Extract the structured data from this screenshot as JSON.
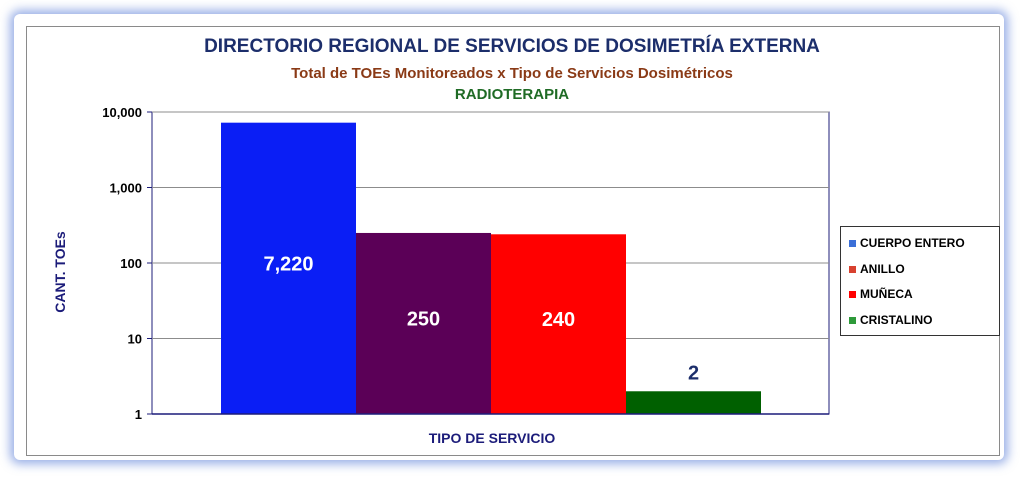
{
  "chart_data": {
    "type": "bar",
    "title": "DIRECTORIO REGIONAL DE SERVICIOS DE DOSIMETRÍA EXTERNA",
    "subtitle": "Total de TOEs Monitoreados x Tipo de Servicios Dosimétricos",
    "subtitle2": "RADIOTERAPIA",
    "xlabel": "TIPO DE SERVICIO",
    "ylabel": "CANT. TOEs",
    "y_scale": "log",
    "ylim": [
      1,
      10000
    ],
    "y_ticks": [
      1,
      10,
      100,
      1000,
      10000
    ],
    "y_tick_labels": [
      "1",
      "10",
      "100",
      "1,000",
      "10,000"
    ],
    "grid": true,
    "legend_position": "right",
    "series": [
      {
        "name": "CUERPO ENTERO",
        "value": 7220,
        "label": "7,220",
        "color": "#0a1ef5",
        "legend_color": "#3b6fd8",
        "label_color": "#ffffff"
      },
      {
        "name": "ANILLO",
        "value": 250,
        "label": "250",
        "color": "#5b0057",
        "legend_color": "#d8412f",
        "label_color": "#ffffff"
      },
      {
        "name": "MUÑECA",
        "value": 240,
        "label": "240",
        "color": "#ff0000",
        "legend_color": "#ff0000",
        "label_color": "#ffffff"
      },
      {
        "name": "CRISTALINO",
        "value": 2,
        "label": "2",
        "color": "#006000",
        "legend_color": "#2e9a3a",
        "label_color": "#1c2e6b"
      }
    ]
  }
}
